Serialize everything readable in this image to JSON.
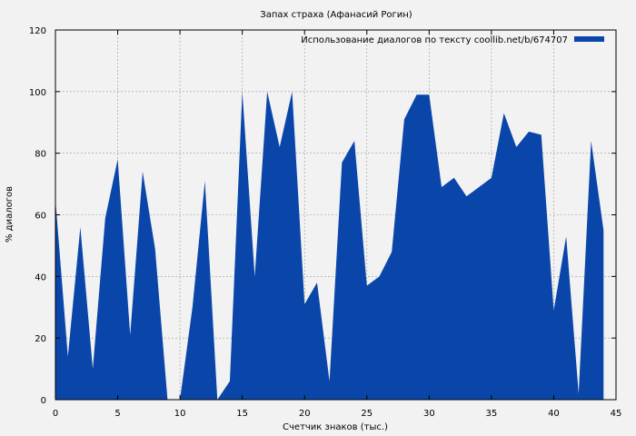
{
  "chart_data": {
    "type": "area",
    "title": "Запах страха (Афанасий Рогин)",
    "xlabel": "Счетчик знаков (тыс.)",
    "ylabel": "% диалогов",
    "xlim": [
      0,
      45
    ],
    "ylim": [
      0,
      120
    ],
    "xticks": [
      0,
      5,
      10,
      15,
      20,
      25,
      30,
      35,
      40,
      45
    ],
    "yticks": [
      0,
      20,
      40,
      60,
      80,
      100,
      120
    ],
    "grid": true,
    "legend_position": "top-right",
    "series": [
      {
        "name": "Использование диалогов по тексту coollib.net/b/674707",
        "color": "#0a46aa",
        "x": [
          0,
          1,
          2,
          3,
          4,
          5,
          6,
          7,
          8,
          9,
          10,
          11,
          12,
          13,
          14,
          15,
          16,
          17,
          18,
          19,
          20,
          21,
          22,
          23,
          24,
          25,
          26,
          27,
          28,
          29,
          30,
          31,
          32,
          33,
          34,
          35,
          36,
          37,
          38,
          39,
          40,
          41,
          42,
          43,
          44
        ],
        "y": [
          65,
          14,
          56,
          10,
          59,
          78,
          21,
          74,
          49,
          0,
          0,
          30,
          71,
          0,
          6,
          100,
          40,
          100,
          82,
          100,
          31,
          38,
          6,
          77,
          84,
          37,
          40,
          48,
          91,
          99,
          99,
          69,
          72,
          66,
          69,
          72,
          93,
          82,
          87,
          86,
          29,
          53,
          2,
          84,
          55
        ]
      }
    ]
  }
}
